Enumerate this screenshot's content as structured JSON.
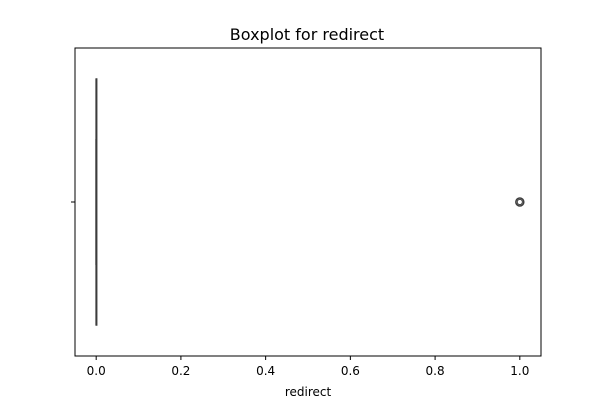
{
  "chart_data": {
    "type": "boxplot",
    "title": "Boxplot for redirect",
    "xlabel": "redirect",
    "ylabel": "",
    "xlim": [
      -0.05,
      1.05
    ],
    "xticks": [
      0.0,
      0.2,
      0.4,
      0.6,
      0.8,
      1.0
    ],
    "xtick_labels": [
      "0.0",
      "0.2",
      "0.4",
      "0.6",
      "0.8",
      "1.0"
    ],
    "grid": false,
    "series": [
      {
        "q1": 0.0,
        "median": 0.0,
        "q3": 0.0,
        "whisker_low": 0.0,
        "whisker_high": 0.0,
        "outliers": [
          1.0
        ]
      }
    ],
    "colors": {
      "box_edge": "#3d3d3d",
      "axes": "#000000",
      "background": "#ffffff"
    }
  }
}
